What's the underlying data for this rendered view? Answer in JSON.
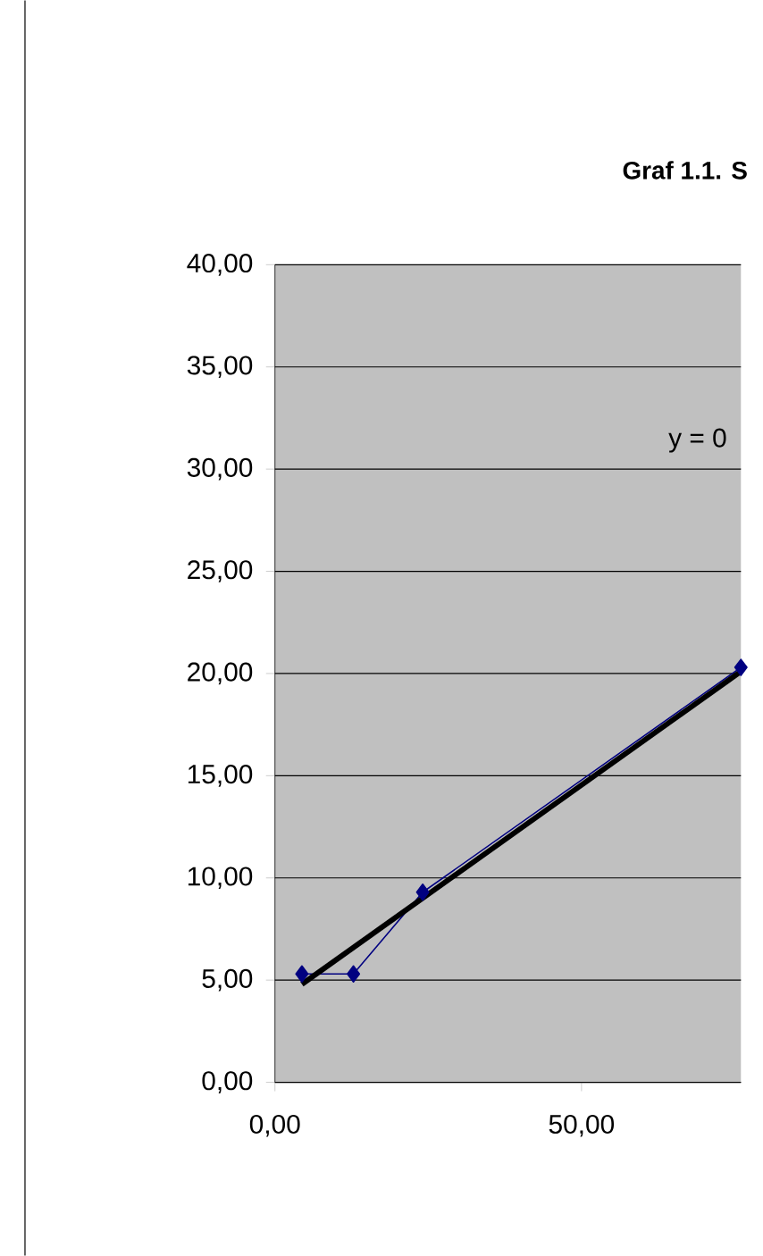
{
  "chart_data": {
    "type": "line",
    "title": "Graf 1.1. S",
    "annotations": [
      "y = 0"
    ],
    "series": [
      {
        "color": "#000080",
        "x": [
          4.4,
          12.8,
          24.1,
          76
        ],
        "values": [
          5.3,
          5.3,
          9.3,
          20.3
        ]
      },
      {
        "color": "#000000",
        "type": "line",
        "marker": "none",
        "x": [
          4.4,
          76
        ],
        "values": [
          4.8,
          20.1
        ]
      }
    ],
    "marker": "diamond",
    "grid": "y",
    "xlim": [
      0,
      76
    ],
    "xticks": [
      {
        "value": 0,
        "label": "0,00"
      },
      {
        "value": 50,
        "label": "50,00"
      }
    ],
    "ylim": [
      0,
      40
    ],
    "yticks": [
      {
        "value": 0,
        "label": "0,00"
      },
      {
        "value": 5,
        "label": "5,00"
      },
      {
        "value": 10,
        "label": "10,00"
      },
      {
        "value": 15,
        "label": "15,00"
      },
      {
        "value": 20,
        "label": "20,00"
      },
      {
        "value": 25,
        "label": "25,00"
      },
      {
        "value": 30,
        "label": "30,00"
      },
      {
        "value": 35,
        "label": "35,00"
      },
      {
        "value": 40,
        "label": "40,00"
      }
    ]
  }
}
